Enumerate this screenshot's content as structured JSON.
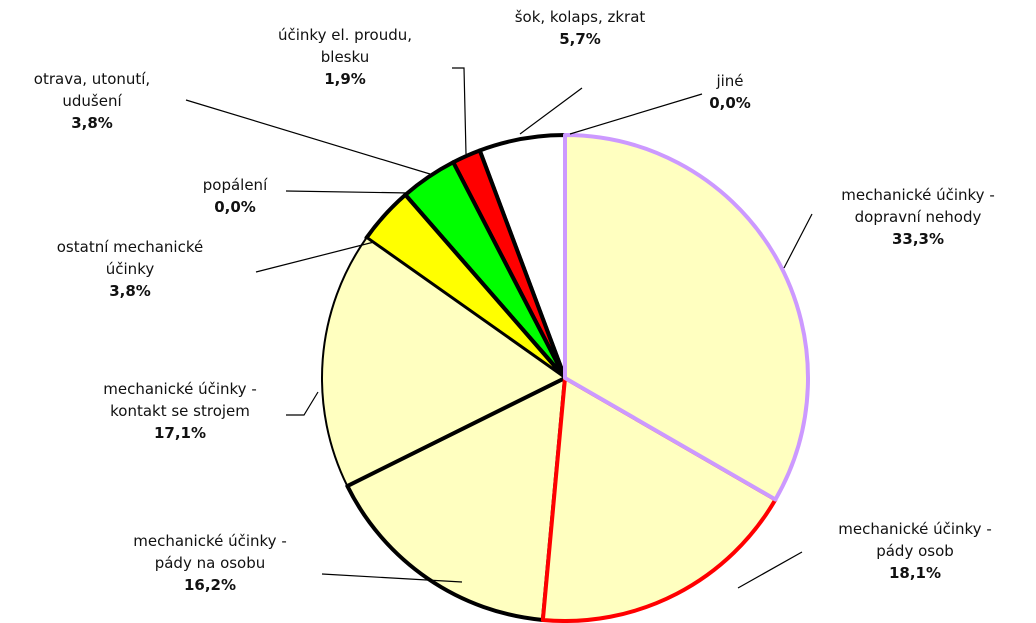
{
  "chart_data": {
    "type": "pie",
    "categories": [
      "mechanické účinky -\ndopravní nehody",
      "mechanické účinky -\npády osob",
      "mechanické účinky -\npády na osobu",
      "mechanické účinky -\nkontakt se strojem",
      "ostatní mechanické\núčinky",
      "popálení",
      "otrava, utonutí,\nudušení",
      "účinky el. proudu,\nblesku",
      "šok, kolaps, zkrat",
      "jiné"
    ],
    "values": [
      33.3,
      18.1,
      16.2,
      17.1,
      3.8,
      0.0,
      3.8,
      1.9,
      5.7,
      0.0
    ],
    "value_labels": [
      "33,3%",
      "18,1%",
      "16,2%",
      "17,1%",
      "3,8%",
      "0,0%",
      "3,8%",
      "1,9%",
      "5,7%",
      "0,0%"
    ],
    "colors": [
      "#ffffc0",
      "#ffffc0",
      "#ffffc0",
      "#ffffc0",
      "#ffff00",
      "#ff8000",
      "#00ff00",
      "#ff0000",
      "#ffffff",
      "#c0c0c0"
    ],
    "edgecolors": [
      "#cc99ff",
      "#ff0000",
      "#000000",
      "#000000",
      "#000000",
      "#000000",
      "#000000",
      "#000000",
      "#000000",
      "#000000"
    ]
  }
}
